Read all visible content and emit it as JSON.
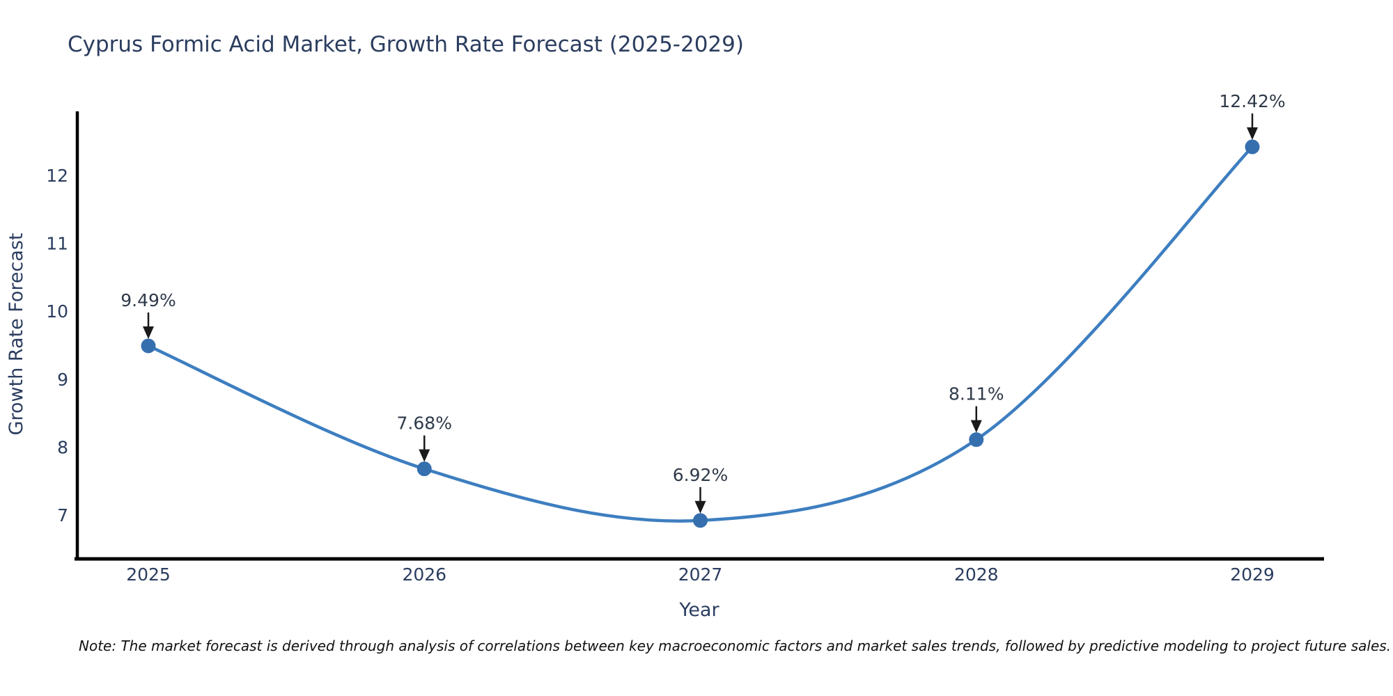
{
  "title": "Cyprus Formic Acid Market, Growth Rate Forecast (2025-2029)",
  "note": "Note: The market forecast is derived through analysis of correlations between key macroeconomic factors and market sales trends, followed by predictive modeling to project future sales.",
  "chart_data": {
    "type": "line",
    "title": "Cyprus Formic Acid Market, Growth Rate Forecast (2025-2029)",
    "xlabel": "Year",
    "ylabel": "Growth Rate Forecast",
    "categories": [
      "2025",
      "2026",
      "2027",
      "2028",
      "2029"
    ],
    "series": [
      {
        "name": "Growth Rate Forecast",
        "values": [
          9.49,
          7.68,
          6.92,
          8.11,
          12.42
        ]
      }
    ],
    "point_labels": [
      "9.49%",
      "7.68%",
      "6.92%",
      "8.11%",
      "12.42%"
    ],
    "yticks": [
      7,
      8,
      9,
      10,
      11,
      12
    ],
    "ylim": [
      6.35,
      12.95
    ],
    "grid": false,
    "legend": false,
    "line_shape": "spline",
    "colors": {
      "line": "#3d7ec0",
      "marker": "#356fae",
      "axis": "#000000",
      "labels": "#2b3d5f",
      "annotation_text": "#2f3a49",
      "annotation_arrow": "#1a1a1a"
    }
  }
}
